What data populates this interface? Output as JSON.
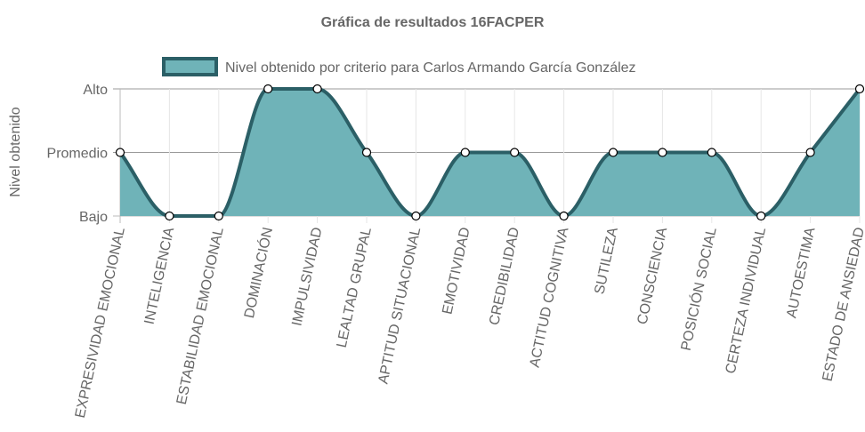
{
  "chart_data": {
    "type": "area",
    "title": "Gráfica de resultados 16FACPER",
    "ylabel": "Nivel obtenido",
    "xlabel": "",
    "y_levels": [
      "Bajo",
      "Promedio",
      "Alto"
    ],
    "categories": [
      "EXPRESIVIDAD EMOCIONAL",
      "INTELIGENCIA",
      "ESTABILIDAD EMOCIONAL",
      "DOMINACIÓN",
      "IMPULSIVIDAD",
      "LEALTAD GRUPAL",
      "APTITUD SITUACIONAL",
      "EMOTIVIDAD",
      "CREDIBILIDAD",
      "ACTITUD COGNITIVA",
      "SUTILEZA",
      "CONSCIENCIA",
      "POSICIÓN SOCIAL",
      "CERTEZA INDIVIDUAL",
      "AUTOESTIMA",
      "ESTADO DE ANSIEDAD"
    ],
    "series": [
      {
        "name": "Nivel obtenido por criterio para Carlos Armando García González",
        "values": [
          1,
          0,
          0,
          2,
          2,
          1,
          0,
          1,
          1,
          0,
          1,
          1,
          1,
          0,
          1,
          2
        ],
        "fill_color": "#6fb3b8",
        "line_color": "#2b5f66"
      }
    ],
    "ylim": [
      0,
      2
    ],
    "grid": true,
    "legend_position": "top"
  }
}
